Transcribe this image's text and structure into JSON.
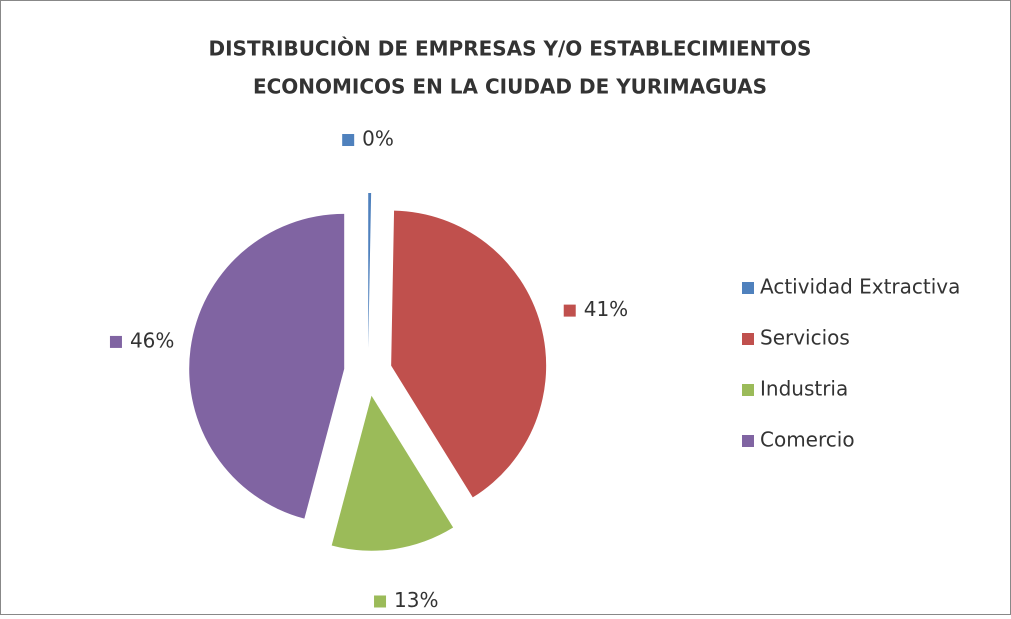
{
  "chart_data": {
    "type": "pie",
    "title": "DISTRIBUCIÒN DE EMPRESAS Y/O ESTABLECIMIENTOS",
    "subtitle": "ECONOMICOS EN LA CIUDAD DE YURIMAGUAS",
    "categories": [
      "Actividad Extractiva",
      "Servicios",
      "Industria",
      "Comercio"
    ],
    "values": [
      0.3,
      41,
      13,
      46
    ],
    "value_labels": [
      "0%",
      "41%",
      "13%",
      "46%"
    ],
    "colors": [
      "#4f81bd",
      "#c0504d",
      "#9bbb59",
      "#8064a2"
    ],
    "legend": "right"
  }
}
